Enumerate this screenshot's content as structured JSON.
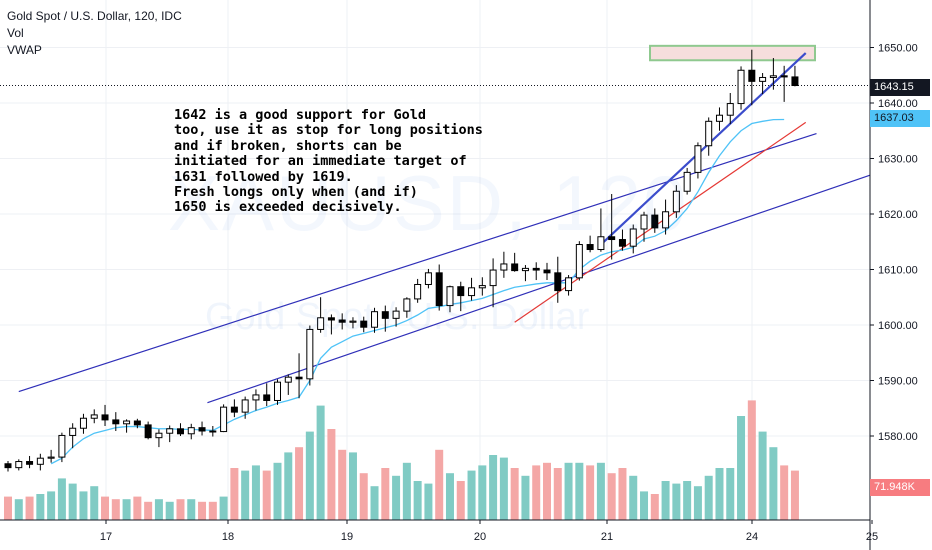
{
  "legend": {
    "title": "Gold Spot / U.S. Dollar, 120, IDC",
    "vol": "Vol",
    "vwap": "VWAP"
  },
  "watermark": {
    "symbol": "XAUUSD, 120",
    "name": "Gold Spot / U.S. Dollar"
  },
  "note": "1642 is a good support for Gold\ntoo, use it as stop for long positions\nand if broken, shorts can be\ninitiated for an immediate target of\n1631 followed by 1619.\nFresh longs only when (and if)\n1650 is exceeded decisively.",
  "price_tags": {
    "last": "1643.15",
    "vwap": "1637.03",
    "volume": "71.948K"
  },
  "colors": {
    "up": "#26a69a",
    "down": "#ef5350",
    "vol_up": "#80cbc4",
    "vol_down": "#f4a7a6",
    "vwap": "#4fc3f7",
    "channel": "#2f2fb8",
    "trend_red": "#e53935",
    "trend_blue": "#3b4ccc",
    "target_fill": "#f6dedd",
    "target_border": "#8fc98f"
  },
  "chart_data": {
    "type": "candlestick",
    "y_axis": {
      "ticks": [
        1580,
        1590,
        1600,
        1610,
        1620,
        1630,
        1640,
        1650
      ],
      "range": [
        1570,
        1655
      ]
    },
    "x_axis": {
      "ticks": [
        "17",
        "18",
        "19",
        "20",
        "21",
        "24",
        "25"
      ]
    },
    "candles": [
      [
        1575.0,
        1575.5,
        1573.6,
        1574.3
      ],
      [
        1574.3,
        1575.8,
        1573.8,
        1575.4
      ],
      [
        1575.4,
        1576.4,
        1574.2,
        1574.9
      ],
      [
        1574.9,
        1576.8,
        1573.8,
        1576.0
      ],
      [
        1576.0,
        1577.5,
        1575.2,
        1576.2
      ],
      [
        1576.2,
        1580.6,
        1575.3,
        1580.1
      ],
      [
        1580.1,
        1582.3,
        1577.8,
        1581.4
      ],
      [
        1581.4,
        1584.0,
        1580.4,
        1583.2
      ],
      [
        1583.2,
        1584.8,
        1582.3,
        1583.8
      ],
      [
        1583.8,
        1585.6,
        1581.8,
        1582.9
      ],
      [
        1582.9,
        1584.3,
        1580.9,
        1582.2
      ],
      [
        1582.2,
        1583.0,
        1580.6,
        1582.7
      ],
      [
        1582.7,
        1583.1,
        1581.4,
        1582.0
      ],
      [
        1582.0,
        1582.6,
        1579.4,
        1579.7
      ],
      [
        1579.7,
        1581.2,
        1578.0,
        1580.5
      ],
      [
        1580.5,
        1581.9,
        1578.9,
        1581.3
      ],
      [
        1581.3,
        1582.3,
        1580.0,
        1580.4
      ],
      [
        1580.4,
        1582.2,
        1579.4,
        1581.5
      ],
      [
        1581.5,
        1582.6,
        1580.1,
        1580.9
      ],
      [
        1580.9,
        1581.8,
        1579.9,
        1580.8
      ],
      [
        1580.8,
        1585.7,
        1580.7,
        1585.2
      ],
      [
        1585.2,
        1586.6,
        1583.4,
        1584.3
      ],
      [
        1584.3,
        1587.1,
        1583.1,
        1586.5
      ],
      [
        1586.5,
        1588.4,
        1584.6,
        1587.4
      ],
      [
        1587.4,
        1589.5,
        1585.4,
        1586.4
      ],
      [
        1586.4,
        1590.2,
        1585.6,
        1589.7
      ],
      [
        1589.7,
        1591.1,
        1587.4,
        1590.6
      ],
      [
        1590.6,
        1594.9,
        1586.8,
        1590.3
      ],
      [
        1590.3,
        1599.9,
        1589.1,
        1599.2
      ],
      [
        1599.2,
        1605.0,
        1598.6,
        1601.3
      ],
      [
        1601.3,
        1601.9,
        1598.3,
        1600.9
      ],
      [
        1600.9,
        1602.1,
        1599.2,
        1600.5
      ],
      [
        1600.5,
        1601.4,
        1599.4,
        1600.7
      ],
      [
        1600.7,
        1601.5,
        1598.7,
        1599.6
      ],
      [
        1599.6,
        1603.1,
        1598.6,
        1602.4
      ],
      [
        1602.4,
        1603.5,
        1598.8,
        1601.2
      ],
      [
        1601.2,
        1603.2,
        1599.7,
        1602.5
      ],
      [
        1602.5,
        1605.0,
        1601.3,
        1604.7
      ],
      [
        1604.7,
        1608.3,
        1604.0,
        1607.3
      ],
      [
        1607.3,
        1610.1,
        1606.6,
        1609.4
      ],
      [
        1609.4,
        1610.9,
        1602.6,
        1603.5
      ],
      [
        1603.5,
        1607.1,
        1602.3,
        1606.9
      ],
      [
        1606.9,
        1607.8,
        1602.5,
        1605.3
      ],
      [
        1605.3,
        1608.5,
        1604.4,
        1606.7
      ],
      [
        1606.7,
        1608.6,
        1605.3,
        1607.1
      ],
      [
        1607.1,
        1612.0,
        1603.2,
        1609.9
      ],
      [
        1609.9,
        1613.2,
        1608.5,
        1611.0
      ],
      [
        1611.0,
        1613.0,
        1609.6,
        1609.8
      ],
      [
        1609.8,
        1610.8,
        1607.9,
        1610.2
      ],
      [
        1610.2,
        1611.3,
        1608.1,
        1609.9
      ],
      [
        1609.9,
        1611.2,
        1608.1,
        1609.4
      ],
      [
        1609.4,
        1612.3,
        1604.0,
        1606.2
      ],
      [
        1606.2,
        1609.0,
        1605.3,
        1608.5
      ],
      [
        1608.5,
        1615.1,
        1608.0,
        1614.5
      ],
      [
        1614.5,
        1616.1,
        1613.1,
        1613.6
      ],
      [
        1613.6,
        1621.0,
        1613.2,
        1615.9
      ],
      [
        1615.9,
        1623.6,
        1611.8,
        1615.4
      ],
      [
        1615.4,
        1617.2,
        1613.4,
        1614.2
      ],
      [
        1614.2,
        1618.1,
        1612.9,
        1617.3
      ],
      [
        1617.3,
        1620.4,
        1615.0,
        1619.8
      ],
      [
        1619.8,
        1621.0,
        1616.6,
        1617.5
      ],
      [
        1617.5,
        1622.6,
        1616.3,
        1620.4
      ],
      [
        1620.4,
        1625.2,
        1619.3,
        1624.1
      ],
      [
        1624.1,
        1628.3,
        1623.5,
        1627.5
      ],
      [
        1627.5,
        1632.9,
        1626.4,
        1632.3
      ],
      [
        1632.3,
        1637.4,
        1630.5,
        1636.7
      ],
      [
        1636.7,
        1639.2,
        1635.0,
        1637.8
      ],
      [
        1637.8,
        1641.8,
        1636.2,
        1639.9
      ],
      [
        1639.9,
        1646.6,
        1638.8,
        1645.9
      ],
      [
        1645.9,
        1649.6,
        1639.6,
        1643.9
      ],
      [
        1643.9,
        1645.4,
        1641.6,
        1644.6
      ],
      [
        1644.6,
        1648.1,
        1642.4,
        1644.9
      ],
      [
        1644.9,
        1646.7,
        1640.2,
        1644.7
      ],
      [
        1644.7,
        1646.7,
        1643.0,
        1643.15
      ]
    ],
    "volume": [
      9,
      8,
      9,
      10,
      11,
      16,
      14,
      11,
      13,
      9,
      8,
      8,
      9,
      7,
      8,
      7,
      8,
      8,
      7,
      7,
      9,
      20,
      19,
      21,
      19,
      22,
      26,
      28,
      34,
      44,
      35,
      27,
      26,
      18,
      13,
      20,
      17,
      22,
      15,
      14,
      27,
      18,
      15,
      19,
      21,
      25,
      24,
      20,
      17,
      21,
      22,
      20,
      22,
      22,
      21,
      22,
      18,
      20,
      17,
      11,
      10,
      15,
      14,
      15,
      13,
      17,
      20,
      20,
      40,
      46,
      34,
      28,
      21,
      19
    ],
    "vwap": [
      null,
      null,
      null,
      null,
      1575.0,
      1576.0,
      1578.0,
      1579.5,
      1580.5,
      1581.0,
      1581.5,
      1581.7,
      1581.7,
      1581.5,
      1581.3,
      1581.3,
      1581.2,
      1581.2,
      1581.1,
      1581.0,
      1582.0,
      1583.0,
      1583.8,
      1584.6,
      1585.2,
      1585.9,
      1586.4,
      1587.0,
      1590.0,
      1594.0,
      1596.0,
      1597.0,
      1598.0,
      1598.5,
      1599.0,
      1599.5,
      1600.0,
      1600.8,
      1601.8,
      1603.0,
      1603.3,
      1603.7,
      1604.0,
      1604.4,
      1604.8,
      1605.5,
      1606.2,
      1606.8,
      1607.1,
      1607.4,
      1607.6,
      1607.6,
      1607.6,
      1610.0,
      1611.5,
      1612.6,
      1613.2,
      1613.5,
      1614.0,
      1615.5,
      1616.0,
      1617.0,
      1618.8,
      1621.0,
      1624.0,
      1627.5,
      1630.5,
      1633.0,
      1635.0,
      1636.3,
      1636.7,
      1637.0,
      1637.03,
      null
    ],
    "channel_lines": [
      {
        "from": [
          1,
          1588.0
        ],
        "to": [
          75,
          1634.5
        ]
      },
      {
        "from": [
          18.5,
          1586.0
        ],
        "to": [
          83,
          1627.0
        ]
      }
    ],
    "trend_red": {
      "from": [
        47,
        1600.5
      ],
      "to": [
        74,
        1636.5
      ]
    },
    "trend_blue": {
      "from": [
        55,
        1614.5
      ],
      "to": [
        74,
        1649.0
      ]
    },
    "target_zone": [
      1647.7,
      1650.3
    ]
  }
}
